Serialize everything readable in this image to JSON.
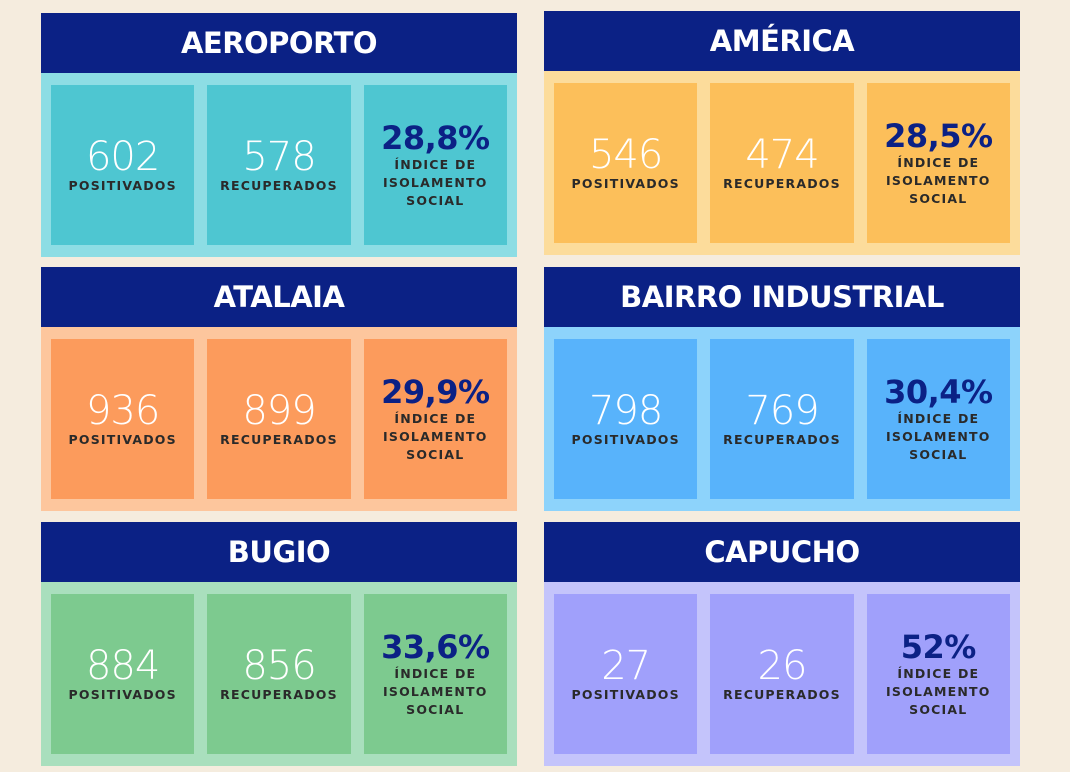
{
  "labels": {
    "positivos": "POSITIVADOS",
    "recuperados": "RECUPERADOS",
    "indice": "ÍNDICE DE ISOLAMENTO SOCIAL"
  },
  "colors": {
    "header": "#0b2185",
    "aeroporto": "#4ec6d1",
    "america": "#fcbf5a",
    "atalaia": "#fc9b5c",
    "bairro_industrial": "#58b3fb",
    "bugio": "#7dca8f",
    "capucho": "#a0a0fb"
  },
  "bairros": [
    {
      "nome": "AEROPORTO",
      "positivados": "602",
      "recuperados": "578",
      "isolamento": "28,8%"
    },
    {
      "nome": "AMÉRICA",
      "positivados": "546",
      "recuperados": "474",
      "isolamento": "28,5%"
    },
    {
      "nome": "ATALAIA",
      "positivados": "936",
      "recuperados": "899",
      "isolamento": "29,9%"
    },
    {
      "nome": "BAIRRO INDUSTRIAL",
      "positivados": "798",
      "recuperados": "769",
      "isolamento": "30,4%"
    },
    {
      "nome": "BUGIO",
      "positivados": "884",
      "recuperados": "856",
      "isolamento": "33,6%"
    },
    {
      "nome": "CAPUCHO",
      "positivados": "27",
      "recuperados": "26",
      "isolamento": "52%"
    }
  ]
}
